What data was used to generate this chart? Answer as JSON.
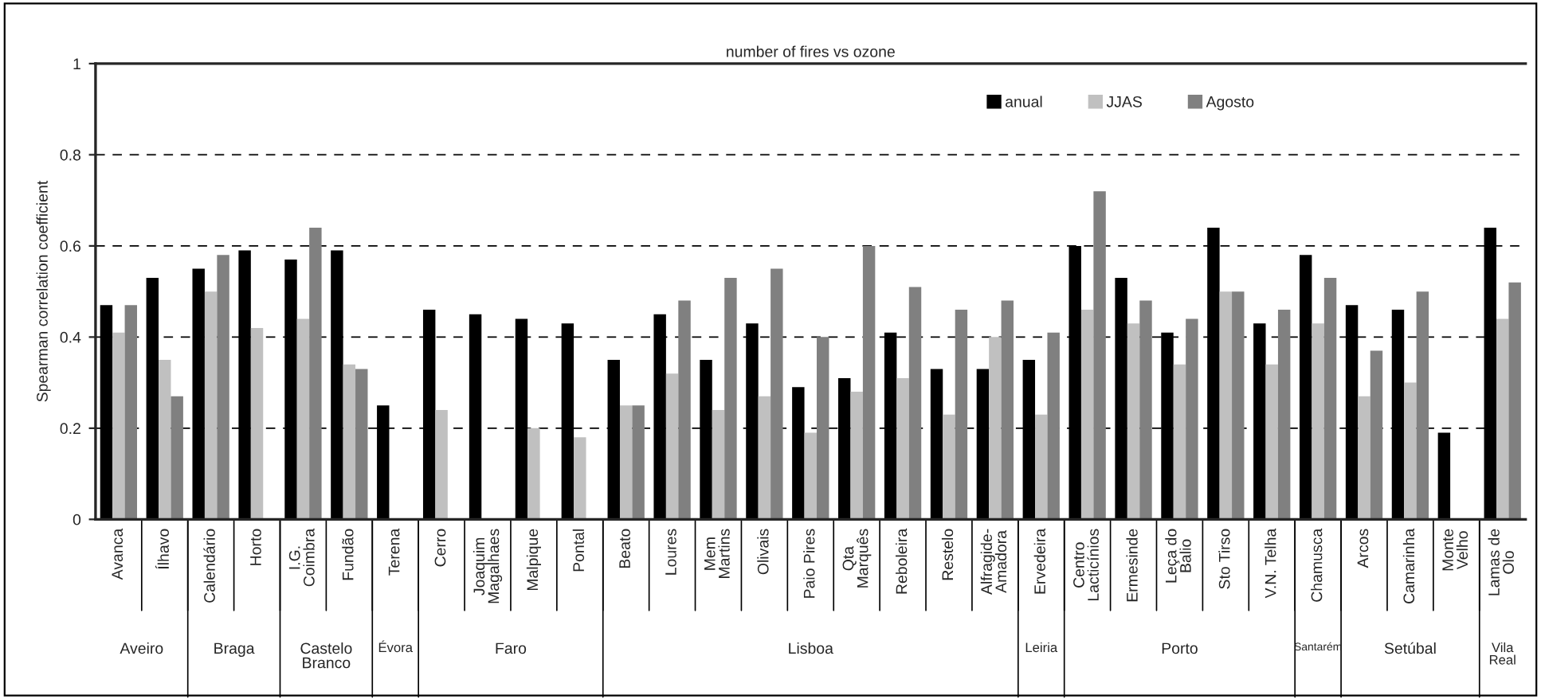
{
  "chart_data": {
    "type": "bar",
    "title": "number of fires vs ozone",
    "ylabel": "Spearman correlation coefficient",
    "categories": [
      "Avanca",
      "Ílhavo",
      "Calendário",
      "Horto",
      "I.G. Coimbra",
      "Fundão",
      "Terena",
      "Cerro",
      "Joaquim Magalhaes",
      "Malpique",
      "Pontal",
      "Beato",
      "Loures",
      "Mem Martins",
      "Olivais",
      "Paio Pires",
      "Qta Marquês",
      "Reboleira",
      "Restelo",
      "Alfragide-Amadora",
      "Ervedeira",
      "Centro Lacticínios",
      "Ermesinde",
      "Leça do Balio",
      "Sto Tirso",
      "V.N. Telha",
      "Chamusca",
      "Arcos",
      "Camarinha",
      "Monte Velho",
      "Lamas de Olo"
    ],
    "series": [
      {
        "name": "anual",
        "color": "#000000",
        "values": [
          0.47,
          0.53,
          0.55,
          0.59,
          0.57,
          0.59,
          0.25,
          0.46,
          0.45,
          0.44,
          0.43,
          0.35,
          0.45,
          0.35,
          0.43,
          0.29,
          0.31,
          0.41,
          0.33,
          0.33,
          0.35,
          0.6,
          0.53,
          0.41,
          0.64,
          0.43,
          0.58,
          0.47,
          0.46,
          0.19,
          0.64
        ]
      },
      {
        "name": "JJAS",
        "color": "#c0c0c0",
        "values": [
          0.41,
          0.35,
          0.5,
          0.42,
          0.44,
          0.34,
          null,
          0.24,
          null,
          0.2,
          0.18,
          0.25,
          0.32,
          0.24,
          0.27,
          0.19,
          0.28,
          0.31,
          0.23,
          0.4,
          0.23,
          0.46,
          0.43,
          0.34,
          0.5,
          0.34,
          0.43,
          0.27,
          0.3,
          null,
          0.44
        ]
      },
      {
        "name": "Agosto",
        "color": "#808080",
        "values": [
          0.47,
          0.27,
          0.58,
          null,
          0.64,
          0.33,
          null,
          null,
          null,
          null,
          null,
          0.25,
          0.48,
          0.53,
          0.55,
          0.4,
          0.6,
          0.51,
          0.46,
          0.48,
          0.41,
          0.72,
          0.48,
          0.44,
          0.5,
          0.46,
          0.53,
          0.37,
          0.5,
          null,
          0.52
        ]
      }
    ],
    "ylim": [
      0,
      1
    ],
    "yticks": [
      0,
      0.2,
      0.4,
      0.6,
      0.8,
      1
    ],
    "grid": "y",
    "line_style": "dashed",
    "legend": "top right",
    "annotations": [
      "Aveiro",
      "Braga",
      "Castelo Branco",
      "Évora",
      "Faro",
      "Lisboa",
      "Leiria",
      "Porto",
      "Santarém",
      "Setúbal",
      "Vila Real"
    ]
  }
}
